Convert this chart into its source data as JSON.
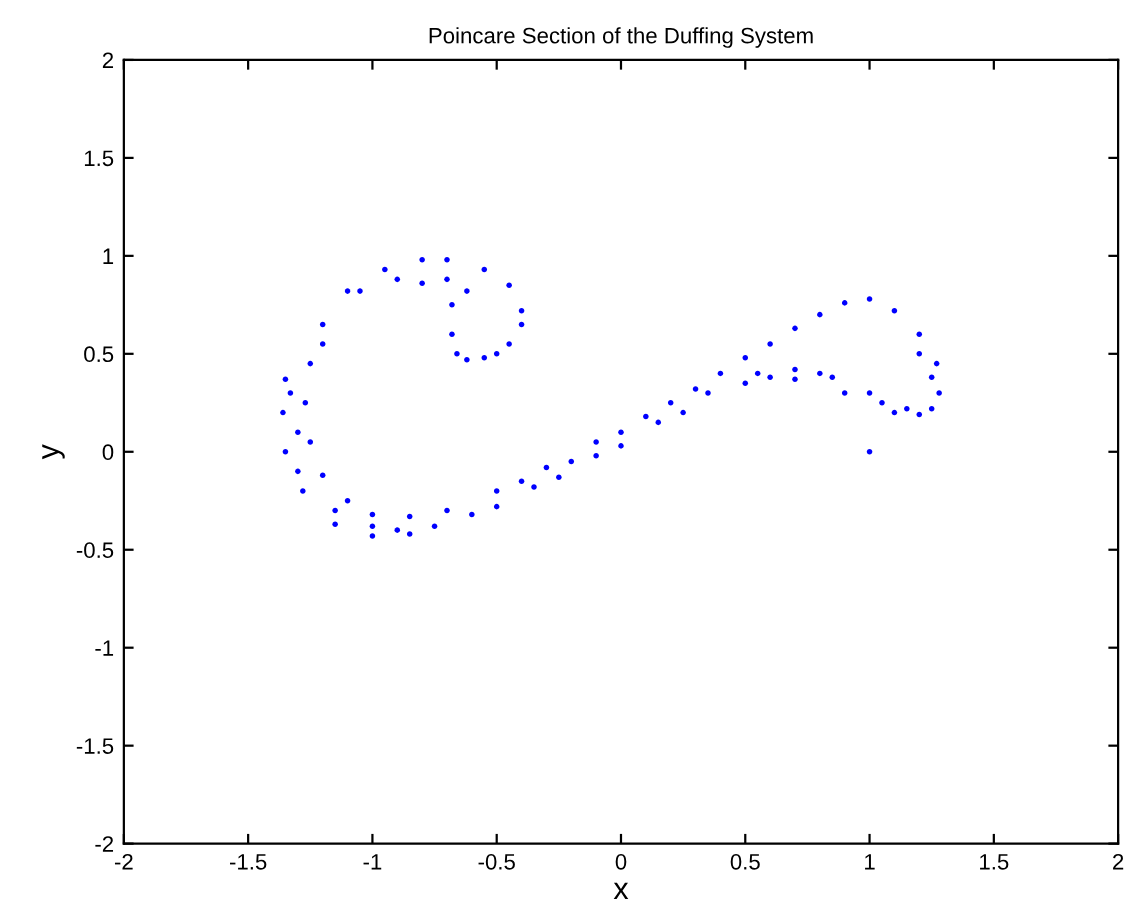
{
  "chart_data": {
    "type": "scatter",
    "title": "Poincare Section of the Duffing System",
    "xlabel": "x",
    "ylabel": "y",
    "xlim": [
      -2,
      2
    ],
    "ylim": [
      -2,
      2
    ],
    "xticks": [
      -2,
      -1.5,
      -1,
      -0.5,
      0,
      0.5,
      1,
      1.5,
      2
    ],
    "yticks": [
      -2,
      -1.5,
      -1,
      -0.5,
      0,
      0.5,
      1,
      1.5,
      2
    ],
    "grid": false,
    "marker": "circle",
    "series": [
      {
        "color": "#0000ff",
        "x": [
          -0.62,
          -0.55,
          -0.45,
          -0.4,
          -0.4,
          -0.45,
          -0.55,
          -0.7,
          -0.8,
          -0.95,
          -1.1,
          -1.2,
          -1.25,
          -1.27,
          -1.25,
          -1.2,
          -1.1,
          -1.0,
          -0.85,
          -0.7,
          -0.5,
          -0.3,
          -0.1,
          0.1,
          0.3,
          0.5,
          0.7,
          0.9,
          1.0,
          1.1,
          1.2,
          1.27,
          1.28,
          1.25,
          1.15,
          1.0,
          0.85,
          0.7,
          0.55,
          0.35,
          0.15,
          -0.1,
          -0.35,
          -0.6,
          -0.85,
          -1.0,
          -1.15,
          -1.28,
          -1.35,
          -1.36,
          -1.35,
          -0.7,
          -0.68,
          -0.68,
          -0.66,
          -0.9,
          -1.05,
          -0.8,
          -1.2,
          -1.3,
          -1.0,
          -0.75,
          -0.5,
          -0.25,
          0.0,
          0.25,
          0.5,
          0.7,
          0.9,
          1.1,
          1.2,
          1.0,
          -0.62,
          -0.5,
          0.8,
          0.6,
          0.4,
          0.2,
          0.0,
          -0.2,
          -0.4,
          0.8,
          0.6,
          1.05,
          1.2,
          1.25,
          -1.3,
          -1.15,
          -0.9,
          -1.33
        ],
        "values": [
          0.47,
          0.48,
          0.55,
          0.65,
          0.72,
          0.85,
          0.93,
          0.98,
          0.98,
          0.93,
          0.82,
          0.65,
          0.45,
          0.25,
          0.05,
          -0.12,
          -0.25,
          -0.32,
          -0.33,
          -0.3,
          -0.2,
          -0.08,
          0.05,
          0.18,
          0.32,
          0.48,
          0.63,
          0.76,
          0.78,
          0.72,
          0.6,
          0.45,
          0.3,
          0.22,
          0.22,
          0.3,
          0.38,
          0.42,
          0.4,
          0.3,
          0.15,
          -0.02,
          -0.18,
          -0.32,
          -0.42,
          -0.43,
          -0.37,
          -0.2,
          0.0,
          0.2,
          0.37,
          0.88,
          0.75,
          0.6,
          0.5,
          0.88,
          0.82,
          0.86,
          0.55,
          0.1,
          -0.38,
          -0.38,
          -0.28,
          -0.13,
          0.03,
          0.2,
          0.35,
          0.37,
          0.3,
          0.2,
          0.19,
          0.0,
          0.82,
          0.5,
          0.7,
          0.55,
          0.4,
          0.25,
          0.1,
          -0.05,
          -0.15,
          0.4,
          0.38,
          0.25,
          0.5,
          0.38,
          -0.1,
          -0.3,
          -0.4,
          0.3
        ]
      }
    ]
  }
}
